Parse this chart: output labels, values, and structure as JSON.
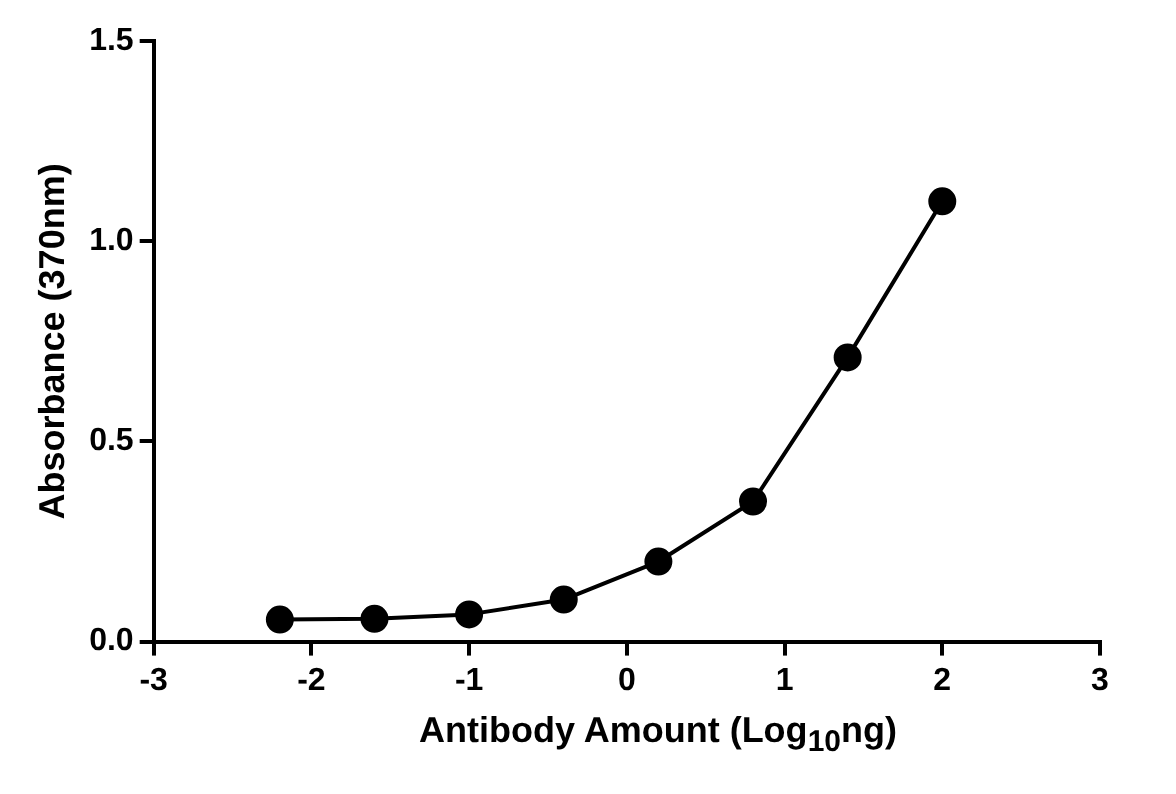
{
  "chart_data": {
    "type": "line",
    "xlabel": "Antibody Amount (Log$_{10}$ng)",
    "ylabel": "Absorbance (370nm)",
    "x": [
      -2.2,
      -1.6,
      -1.0,
      -0.4,
      0.2,
      0.8,
      1.4,
      2.0
    ],
    "series": [
      {
        "color": "#000000",
        "values": [
          0.055,
          0.057,
          0.068,
          0.105,
          0.2,
          0.35,
          0.71,
          1.1
        ]
      }
    ],
    "xlim": [
      -3,
      3
    ],
    "xticks": [
      -3,
      -2,
      -1,
      0,
      1,
      2,
      3
    ],
    "ylim": [
      0,
      1.5
    ],
    "yticks": [
      {
        "value": 0,
        "label": "0.0"
      },
      {
        "value": 0.5,
        "label": "0.5"
      },
      {
        "value": 1,
        "label": "1.0"
      },
      {
        "value": 1.5,
        "label": "1.5"
      }
    ],
    "grid": false,
    "legend": false,
    "marker": "circle",
    "line_style": "solid"
  }
}
